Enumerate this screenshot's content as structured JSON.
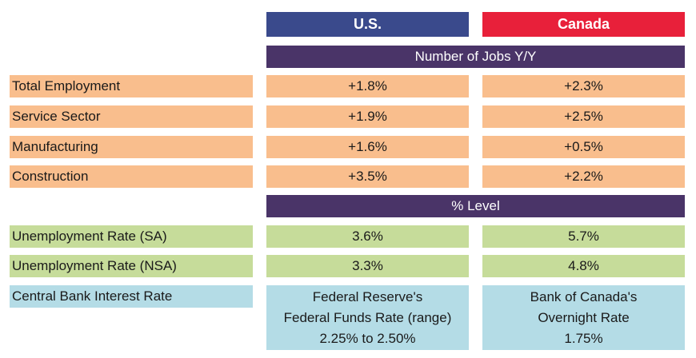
{
  "headers": {
    "us": "U.S.",
    "canada": "Canada"
  },
  "sections": [
    {
      "title": "Number of Jobs Y/Y",
      "rows": [
        {
          "label": "Total Employment",
          "us": "+1.8%",
          "canada": "+2.3%"
        },
        {
          "label": "Service Sector",
          "us": "+1.9%",
          "canada": "+2.5%"
        },
        {
          "label": "Manufacturing",
          "us": "+1.6%",
          "canada": "+0.5%"
        },
        {
          "label": "Construction",
          "us": "+3.5%",
          "canada": "+2.2%"
        }
      ]
    },
    {
      "title": "% Level",
      "rows": [
        {
          "label": "Unemployment Rate (SA)",
          "us": "3.6%",
          "canada": "5.7%"
        },
        {
          "label": "Unemployment Rate (NSA)",
          "us": "3.3%",
          "canada": "4.8%"
        }
      ]
    }
  ],
  "central_bank": {
    "label": "Central Bank Interest Rate",
    "us": [
      "Federal Reserve's",
      "Federal Funds Rate (range)",
      "2.25% to 2.50%"
    ],
    "canada": [
      "Bank of Canada's",
      "Overnight Rate",
      "1.75%"
    ]
  },
  "colors": {
    "us_header": "#3a4a8c",
    "canada_header": "#e8203a",
    "section_band": "#4a3468",
    "jobs_rows": "#f9be8d",
    "rate_rows": "#c6dc9a",
    "central_bank_row": "#b4dce6"
  }
}
